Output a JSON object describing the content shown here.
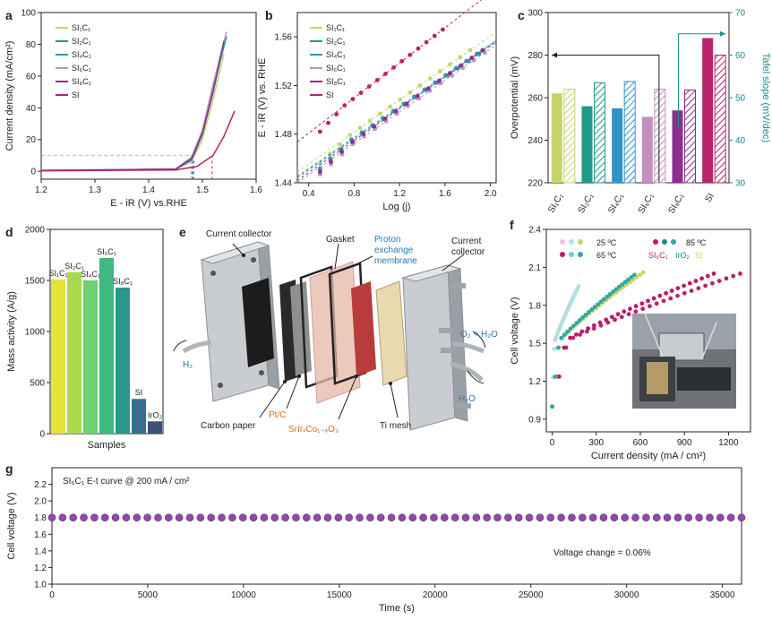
{
  "panels": {
    "a": "a",
    "b": "b",
    "c": "c",
    "d": "d",
    "e": "e",
    "f": "f",
    "g": "g"
  },
  "colors": {
    "SI1C1": "#c8d46a",
    "SI2C1": "#1f9a8a",
    "SI4C1": "#2f95c8",
    "SI6C1": "#c48fbf",
    "SI8C1": "#8a2f8a",
    "SI": "#b8236a"
  },
  "chart_data": [
    {
      "panel": "a",
      "type": "line",
      "xlabel": "E - iR (V) vs.RHE",
      "ylabel": "Current density (mA/cm²)",
      "xlim": [
        1.2,
        1.6
      ],
      "ylim": [
        -5,
        100
      ],
      "xticks": [
        "1.2",
        "1.3",
        "1.4",
        "1.5",
        "1.6"
      ],
      "yticks": [
        "0",
        "20",
        "40",
        "60",
        "80",
        "100"
      ],
      "legend": [
        "SI₁C₁",
        "SI₂C₁",
        "SI₄C₁",
        "SI₆C₁",
        "SI₈C₁",
        "SI"
      ],
      "reference_line": {
        "y": 10,
        "x_onsets": [
          1.484,
          1.481,
          1.484,
          1.479,
          1.482,
          1.518
        ]
      },
      "series": [
        {
          "name": "SI₁C₁",
          "points": [
            [
              1.2,
              0.5
            ],
            [
              1.45,
              1.2
            ],
            [
              1.48,
              6
            ],
            [
              1.5,
              20
            ],
            [
              1.52,
              45
            ],
            [
              1.54,
              74
            ]
          ]
        },
        {
          "name": "SI₂C₁",
          "points": [
            [
              1.2,
              0.5
            ],
            [
              1.45,
              1.3
            ],
            [
              1.48,
              8
            ],
            [
              1.5,
              25
            ],
            [
              1.52,
              52
            ],
            [
              1.545,
              85
            ]
          ]
        },
        {
          "name": "SI₄C₁",
          "points": [
            [
              1.2,
              0.5
            ],
            [
              1.45,
              1.3
            ],
            [
              1.48,
              7
            ],
            [
              1.5,
              23
            ],
            [
              1.52,
              50
            ],
            [
              1.54,
              80
            ]
          ]
        },
        {
          "name": "SI₆C₁",
          "points": [
            [
              1.2,
              0.5
            ],
            [
              1.45,
              1.4
            ],
            [
              1.48,
              9
            ],
            [
              1.5,
              26
            ],
            [
              1.52,
              55
            ],
            [
              1.545,
              88
            ]
          ]
        },
        {
          "name": "SI₈C₁",
          "points": [
            [
              1.2,
              0.5
            ],
            [
              1.45,
              1.3
            ],
            [
              1.48,
              8
            ],
            [
              1.5,
              24
            ],
            [
              1.52,
              50
            ],
            [
              1.54,
              82
            ]
          ]
        },
        {
          "name": "SI",
          "points": [
            [
              1.2,
              0.3
            ],
            [
              1.45,
              0.8
            ],
            [
              1.49,
              3
            ],
            [
              1.52,
              10
            ],
            [
              1.54,
              22
            ],
            [
              1.56,
              38
            ]
          ]
        }
      ]
    },
    {
      "panel": "b",
      "type": "scatter",
      "xlabel": "Log (j)",
      "ylabel": "E - iR (V) vs. RHE",
      "xlim": [
        0.3,
        2.05
      ],
      "ylim": [
        1.44,
        1.58
      ],
      "xticks": [
        "0.4",
        "0.8",
        "1.2",
        "1.6",
        "2.0"
      ],
      "yticks": [
        "1.44",
        "1.48",
        "1.52",
        "1.56"
      ],
      "legend": [
        "SI₁C₁",
        "SI₂C₁",
        "SI₄C₁",
        "SI₆C₁",
        "SI₈C₁",
        "SI"
      ],
      "series": [
        {
          "name": "SI₁C₁",
          "x_range": [
            0.5,
            1.82
          ],
          "y_range": [
            1.462,
            1.549
          ]
        },
        {
          "name": "SI₂C₁",
          "x_range": [
            0.5,
            1.9
          ],
          "y_range": [
            1.457,
            1.546
          ]
        },
        {
          "name": "SI₄C₁",
          "x_range": [
            0.5,
            1.88
          ],
          "y_range": [
            1.458,
            1.546
          ]
        },
        {
          "name": "SI₆C₁",
          "x_range": [
            0.5,
            1.95
          ],
          "y_range": [
            1.453,
            1.547
          ]
        },
        {
          "name": "SI₈C₁",
          "x_range": [
            0.5,
            1.93
          ],
          "y_range": [
            1.455,
            1.549
          ]
        },
        {
          "name": "SI",
          "x_range": [
            0.5,
            1.58
          ],
          "y_range": [
            1.488,
            1.566
          ]
        }
      ]
    },
    {
      "panel": "c",
      "type": "bar",
      "categories": [
        "SI₁C₁",
        "SI₂C₁",
        "SI₄C₁",
        "SI₆C₁",
        "SI₈C₁",
        "SI"
      ],
      "ylabel": "Overpotential (mV)",
      "y2label": "Tafel slope (mV/dec)",
      "ylim": [
        220,
        300
      ],
      "y2lim": [
        30,
        70
      ],
      "yticks": [
        "220",
        "240",
        "260",
        "280",
        "300"
      ],
      "y2ticks": [
        "30",
        "40",
        "50",
        "60",
        "70"
      ],
      "overpotential": [
        262,
        256,
        255,
        251,
        254,
        288
      ],
      "tafel_slope": [
        52,
        53.5,
        53.8,
        52,
        51.8,
        60
      ]
    },
    {
      "panel": "d",
      "type": "bar",
      "xlabel": "Samples",
      "ylabel": "Mass activity (A/g)",
      "ylim": [
        0,
        2000
      ],
      "yticks": [
        "0",
        "500",
        "1000",
        "1500",
        "2000"
      ],
      "categories": [
        "SI₁C₁",
        "SI₂C₁",
        "SI₄C₁",
        "SI₆C₁",
        "SI₈C₁",
        "SI",
        "IrO₂"
      ],
      "values": [
        1510,
        1580,
        1500,
        1720,
        1430,
        340,
        120
      ],
      "bar_colors": [
        "#e6e43a",
        "#a8d94a",
        "#6fd075",
        "#3fb882",
        "#26998a",
        "#3a6d8c",
        "#3b4f7a"
      ]
    },
    {
      "panel": "f",
      "type": "scatter",
      "xlabel": "Current density (mA / cm²)",
      "ylabel": "Cell voltage (V)",
      "xlim": [
        -40,
        1350
      ],
      "ylim": [
        0.8,
        2.4
      ],
      "xticks": [
        "0",
        "300",
        "600",
        "900",
        "1200"
      ],
      "yticks": [
        "0.9",
        "1.2",
        "1.5",
        "1.8",
        "2.1",
        "2.4"
      ],
      "legend": [
        "25 ºC",
        "65 ºC",
        "85 ºC",
        "SI₆C₁",
        "IrO₂",
        "SI"
      ],
      "series": [
        {
          "name": "SI₆C₁ 85 ºC",
          "x_max": 1280,
          "y_end": 2.05
        },
        {
          "name": "IrO₂ 85 ºC",
          "x_max": 620,
          "y_end": 2.06
        },
        {
          "name": "SI 85 ºC",
          "x_max": 1100,
          "y_end": 2.05
        },
        {
          "name": "25 ºC",
          "x_max": 180,
          "y_end": 1.95
        },
        {
          "name": "65 ºC",
          "x_max": 560,
          "y_end": 2.04
        }
      ]
    },
    {
      "panel": "g",
      "type": "scatter",
      "title": "SI₆C₁ E-t curve @ 200 mA / cm²",
      "xlabel": "Time (s)",
      "ylabel": "Cell voltage (V)",
      "xlim": [
        0,
        36000
      ],
      "ylim": [
        1.0,
        2.4
      ],
      "xticks": [
        "0",
        "5000",
        "10000",
        "15000",
        "20000",
        "25000",
        "30000",
        "35000"
      ],
      "yticks": [
        "1.0",
        "1.2",
        "1.4",
        "1.6",
        "1.8",
        "2.0",
        "2.2"
      ],
      "voltage": 1.8,
      "n_points": 66,
      "annotation": "Voltage change = 0.06%"
    }
  ],
  "diagram_e": {
    "labels": {
      "current_collector_left": "Current collector",
      "gasket": "Gasket",
      "pem": "Proton exchange membrane",
      "current_collector_right": "Current collector",
      "h2": "H₂",
      "o2_h2o": "O₂ + H₂O",
      "h2o": "H₂O",
      "carbon_paper": "Carbon paper",
      "ptc": "Pt/C",
      "anode_catalyst": "SrIrₓCo₁₋ₓO₃",
      "ti_mesh": "Ti mesh"
    }
  }
}
